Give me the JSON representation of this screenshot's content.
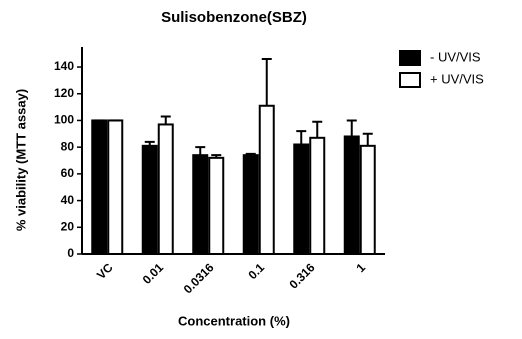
{
  "chart_data": {
    "type": "bar",
    "title": "Sulisobenzone(SBZ)",
    "x_label": "Concentration  (%)",
    "y_label": "% viability (MTT assay)",
    "categories": [
      "VC",
      "0.01",
      "0.0316",
      "0.1",
      "0.316",
      "1"
    ],
    "series": [
      {
        "name": "- UV/VIS",
        "color": "#000000",
        "values": [
          100,
          81,
          74,
          74,
          82,
          88
        ],
        "errors": [
          0,
          3,
          6,
          1,
          10,
          12
        ]
      },
      {
        "name": "+ UV/VIS",
        "color": "#ffffff",
        "values": [
          100,
          97,
          72,
          111,
          87,
          81
        ],
        "errors": [
          0,
          6,
          2,
          35,
          12,
          9
        ]
      }
    ],
    "ylim": [
      0,
      155
    ],
    "yticks": [
      0,
      20,
      40,
      60,
      80,
      100,
      120,
      140
    ],
    "grid": false,
    "legend": "top-right"
  }
}
